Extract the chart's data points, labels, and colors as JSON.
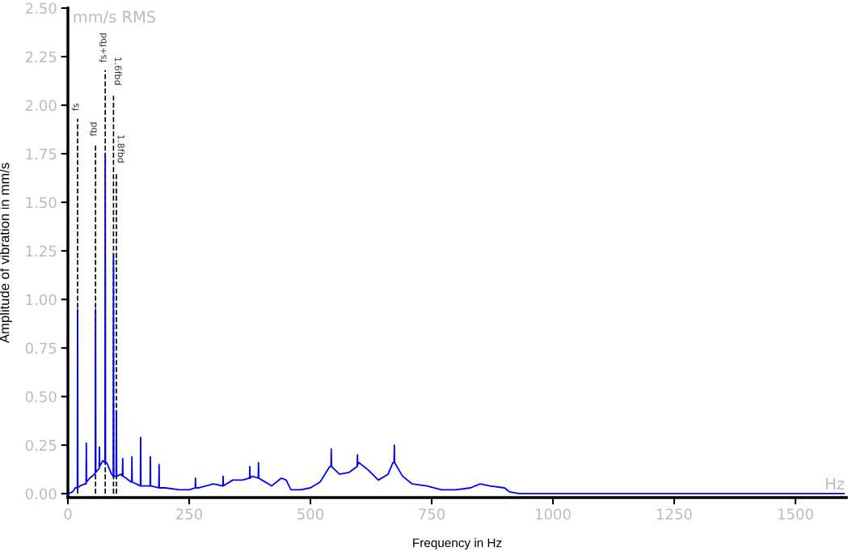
{
  "chart_data": {
    "type": "line",
    "xlabel": "Frequency in Hz",
    "ylabel": "Amplitude of vibration in mm/s",
    "annotations": [
      "mm/s RMS",
      "Hz"
    ],
    "xlim": [
      0,
      1605
    ],
    "ylim": [
      -0.02,
      2.5
    ],
    "xticks": [
      0,
      250,
      500,
      750,
      1000,
      1250,
      1500
    ],
    "yticks": [
      {
        "value": 0,
        "label": "0.00"
      },
      {
        "value": 0.25,
        "label": "0.25"
      },
      {
        "value": 0.5,
        "label": "0.50"
      },
      {
        "value": 0.75,
        "label": "0.75"
      },
      {
        "value": 1,
        "label": "1.00"
      },
      {
        "value": 1.25,
        "label": "1.25"
      },
      {
        "value": 1.5,
        "label": "1.50"
      },
      {
        "value": 1.75,
        "label": "1.75"
      },
      {
        "value": 2,
        "label": "2.00"
      },
      {
        "value": 2.25,
        "label": "2.25"
      },
      {
        "value": 2.5,
        "label": "2.50"
      }
    ],
    "grid": false,
    "legend": false,
    "marker": "none",
    "line_style": "solid",
    "series": [
      {
        "color": "#0000ff",
        "x": [
          0,
          10,
          15,
          19.5,
          20,
          20.5,
          25,
          35,
          37.5,
          38,
          38.5,
          45,
          55,
          56.5,
          57,
          57.5,
          64.5,
          65,
          65.5,
          72,
          76.5,
          77,
          77.5,
          80,
          90,
          93.5,
          94,
          94.5,
          99.5,
          100,
          100.5,
          110,
          112.5,
          113,
          113.5,
          120,
          130,
          131.5,
          132,
          132.5,
          149.5,
          150,
          150.5,
          169.5,
          170,
          170.5,
          187.5,
          188,
          188.5,
          200,
          230,
          250,
          262.5,
          263,
          263.5,
          270,
          300,
          319.5,
          320,
          320.5,
          340,
          360,
          374.5,
          375,
          375.5,
          380,
          392.5,
          393,
          393.5,
          400,
          420,
          440,
          450,
          460,
          480,
          500,
          520,
          540,
          542.5,
          543,
          543.5,
          560,
          580,
          596.5,
          597,
          597.5,
          600,
          620,
          640,
          660,
          670,
          672.5,
          673,
          673.5,
          690,
          710,
          740,
          770,
          800,
          830,
          850,
          870,
          900,
          910,
          930,
          1600
        ],
        "values": [
          0.0,
          0.01,
          0.03,
          0.03,
          0.95,
          0.03,
          0.04,
          0.05,
          0.05,
          0.26,
          0.06,
          0.08,
          0.1,
          0.11,
          0.95,
          0.11,
          0.13,
          0.24,
          0.14,
          0.17,
          0.16,
          1.75,
          0.16,
          0.16,
          0.1,
          0.09,
          1.23,
          0.09,
          0.09,
          0.42,
          0.09,
          0.1,
          0.09,
          0.18,
          0.09,
          0.08,
          0.06,
          0.06,
          0.19,
          0.06,
          0.04,
          0.29,
          0.04,
          0.04,
          0.19,
          0.04,
          0.03,
          0.15,
          0.03,
          0.03,
          0.02,
          0.02,
          0.03,
          0.08,
          0.03,
          0.03,
          0.05,
          0.04,
          0.09,
          0.04,
          0.07,
          0.07,
          0.08,
          0.14,
          0.08,
          0.09,
          0.08,
          0.16,
          0.08,
          0.07,
          0.04,
          0.08,
          0.07,
          0.02,
          0.02,
          0.03,
          0.06,
          0.14,
          0.14,
          0.23,
          0.14,
          0.1,
          0.11,
          0.14,
          0.2,
          0.15,
          0.16,
          0.12,
          0.07,
          0.1,
          0.16,
          0.16,
          0.25,
          0.16,
          0.09,
          0.05,
          0.04,
          0.02,
          0.02,
          0.03,
          0.05,
          0.04,
          0.03,
          0.01,
          0.0,
          0.0
        ]
      }
    ],
    "ref_lines": [
      {
        "axis": "x",
        "value": 20,
        "label": "fs",
        "color": "#000000",
        "line_style": "dashed"
      },
      {
        "axis": "x",
        "value": 57,
        "label": "fbd",
        "color": "#000000",
        "line_style": "dashed"
      },
      {
        "axis": "x",
        "value": 77,
        "label": "fs+fbd",
        "color": "#000000",
        "line_style": "dashed"
      },
      {
        "axis": "x",
        "value": 94,
        "label": "1.6fbd",
        "color": "#000000",
        "line_style": "dashed"
      },
      {
        "axis": "x",
        "value": 100,
        "label": "1.8fbd",
        "color": "#000000",
        "line_style": "dashed"
      }
    ]
  }
}
